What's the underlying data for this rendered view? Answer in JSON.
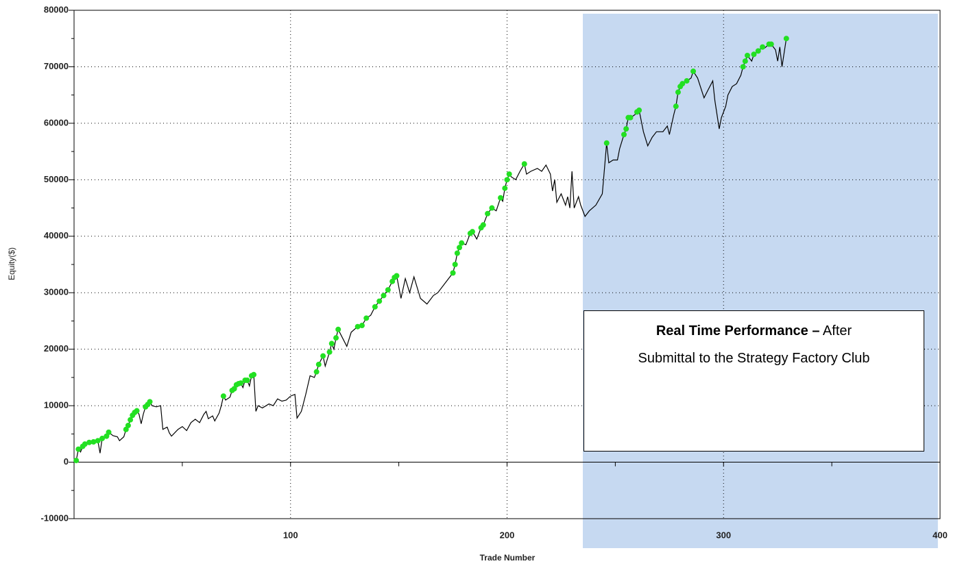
{
  "chart_data": {
    "type": "line",
    "xlabel": "Trade Number",
    "ylabel": "Equity($)",
    "xlim": [
      0,
      400
    ],
    "ylim": [
      -10000,
      80000
    ],
    "xticks": [
      100,
      200,
      300,
      400
    ],
    "yticks": [
      -10000,
      0,
      10000,
      20000,
      30000,
      40000,
      50000,
      60000,
      70000,
      80000
    ],
    "grid": true,
    "minor_ticks": true,
    "highlight": {
      "xlim": [
        235,
        399
      ],
      "color": "#c6d9f1"
    },
    "annotation": [
      "Real Time Performance –",
      "After",
      "Submittal to the Strategy Factory Club"
    ],
    "series": [
      {
        "color": "#000000",
        "marker": "none",
        "x": [
          0,
          1,
          2,
          3,
          4,
          5,
          7,
          9,
          11,
          12,
          13,
          15,
          16,
          18,
          20,
          21,
          23,
          24,
          25,
          26,
          27,
          28,
          29,
          30,
          31,
          32,
          33,
          34,
          35,
          36,
          38,
          40,
          41,
          43,
          44,
          45,
          48,
          50,
          52,
          54,
          56,
          58,
          60,
          61,
          62,
          64,
          65,
          67,
          68,
          69,
          70,
          72,
          73,
          74,
          75,
          76,
          77,
          78,
          79,
          80,
          81,
          82,
          83,
          84,
          85,
          87,
          90,
          92,
          94,
          96,
          98,
          100,
          102,
          103,
          105,
          107,
          109,
          111,
          112,
          113,
          115,
          116,
          118,
          119,
          120,
          121,
          122,
          124,
          126,
          128,
          131,
          133,
          135,
          137,
          139,
          141,
          143,
          145,
          147,
          148,
          149,
          151,
          153,
          155,
          157,
          160,
          163,
          166,
          168,
          171,
          173,
          175,
          176,
          177,
          178,
          179,
          181,
          183,
          184,
          186,
          188,
          189,
          191,
          193,
          195,
          197,
          198,
          199,
          200,
          201,
          202,
          204,
          206,
          208,
          209,
          211,
          214,
          216,
          218,
          220,
          221,
          222,
          223,
          225,
          227,
          228,
          229,
          230,
          231,
          233,
          234,
          236,
          238,
          241,
          244,
          245,
          246,
          247,
          249,
          251,
          252,
          254,
          255,
          256,
          257,
          259,
          260,
          261,
          263,
          265,
          267,
          269,
          272,
          274,
          275,
          277,
          278,
          279,
          280,
          281,
          283,
          285,
          286,
          288,
          291,
          293,
          295,
          296,
          298,
          299,
          301,
          302,
          304,
          306,
          308,
          309,
          310,
          311,
          313,
          314,
          316,
          318,
          319,
          321,
          322,
          324,
          325,
          326,
          327,
          329
        ],
        "values": [
          0,
          300,
          2300,
          1800,
          2800,
          3200,
          3500,
          3600,
          3800,
          1600,
          4200,
          4600,
          5300,
          4700,
          4500,
          3800,
          4500,
          5800,
          6500,
          7500,
          8300,
          8800,
          9100,
          8500,
          6800,
          8500,
          9800,
          10200,
          10700,
          10000,
          9800,
          10000,
          5800,
          6200,
          5200,
          4600,
          5800,
          6300,
          5600,
          7000,
          7600,
          7000,
          8500,
          9000,
          7700,
          8200,
          7300,
          8700,
          10000,
          11700,
          11000,
          11500,
          12700,
          13000,
          13700,
          13900,
          14000,
          13200,
          14500,
          14500,
          13500,
          15300,
          15500,
          9000,
          10000,
          9600,
          10300,
          10000,
          11200,
          10800,
          11000,
          11700,
          12000,
          7800,
          9000,
          12000,
          15300,
          15000,
          16000,
          17300,
          18800,
          17000,
          19500,
          21000,
          20000,
          22000,
          23500,
          22000,
          20500,
          23000,
          24000,
          24200,
          25500,
          26000,
          27500,
          28500,
          29500,
          30500,
          32000,
          32700,
          33000,
          29000,
          32500,
          30000,
          32800,
          29000,
          28000,
          29500,
          30000,
          31500,
          32500,
          33500,
          35000,
          37000,
          38000,
          38800,
          38500,
          40500,
          40800,
          39500,
          41500,
          42000,
          44000,
          45000,
          44500,
          46800,
          46200,
          48500,
          50000,
          51000,
          50500,
          50000,
          51500,
          52800,
          51000,
          51500,
          52000,
          51500,
          52600,
          51000,
          48000,
          50000,
          46000,
          47500,
          45500,
          47000,
          45000,
          51500,
          45000,
          47000,
          45500,
          43500,
          44500,
          45500,
          47500,
          52000,
          56500,
          53000,
          53500,
          53500,
          55500,
          58000,
          59000,
          61000,
          61000,
          61500,
          62000,
          62300,
          58500,
          56000,
          57500,
          58500,
          58500,
          59500,
          58000,
          61500,
          63000,
          65500,
          66500,
          67000,
          67500,
          68000,
          69200,
          68000,
          64500,
          66000,
          67500,
          64000,
          59000,
          61000,
          63000,
          65000,
          66500,
          67000,
          68500,
          70000,
          71000,
          72000,
          71000,
          72200,
          72800,
          73500,
          73300,
          74000,
          74000,
          73000,
          71000,
          73500,
          70000,
          75000
        ]
      },
      {
        "color": "#22e022",
        "marker": "dot",
        "x": [
          1,
          2,
          4,
          5,
          7,
          9,
          11,
          13,
          15,
          16,
          24,
          25,
          26,
          27,
          28,
          29,
          33,
          34,
          35,
          69,
          73,
          74,
          75,
          76,
          77,
          79,
          80,
          82,
          83,
          112,
          113,
          115,
          118,
          119,
          121,
          122,
          131,
          133,
          135,
          139,
          141,
          143,
          145,
          147,
          148,
          149,
          175,
          176,
          177,
          178,
          179,
          183,
          184,
          188,
          189,
          191,
          193,
          197,
          199,
          200,
          201,
          208,
          246,
          254,
          255,
          256,
          257,
          260,
          261,
          278,
          279,
          280,
          281,
          283,
          286,
          309,
          310,
          311,
          314,
          316,
          318,
          321,
          322,
          329
        ],
        "values": [
          300,
          2300,
          2800,
          3200,
          3500,
          3600,
          3800,
          4200,
          4600,
          5300,
          5800,
          6500,
          7500,
          8300,
          8800,
          9100,
          9800,
          10200,
          10700,
          11700,
          12700,
          13000,
          13700,
          13900,
          14000,
          14500,
          14500,
          15300,
          15500,
          16000,
          17300,
          18800,
          19500,
          21000,
          22000,
          23500,
          24000,
          24200,
          25500,
          27500,
          28500,
          29500,
          30500,
          32000,
          32700,
          33000,
          33500,
          35000,
          37000,
          38000,
          38800,
          40500,
          40800,
          41500,
          42000,
          44000,
          45000,
          46800,
          48500,
          50000,
          51000,
          52800,
          56500,
          58000,
          59000,
          61000,
          61000,
          62000,
          62300,
          63000,
          65500,
          66500,
          67000,
          67500,
          69200,
          70000,
          71000,
          72000,
          72200,
          72800,
          73500,
          74000,
          74000,
          75000
        ]
      }
    ]
  }
}
